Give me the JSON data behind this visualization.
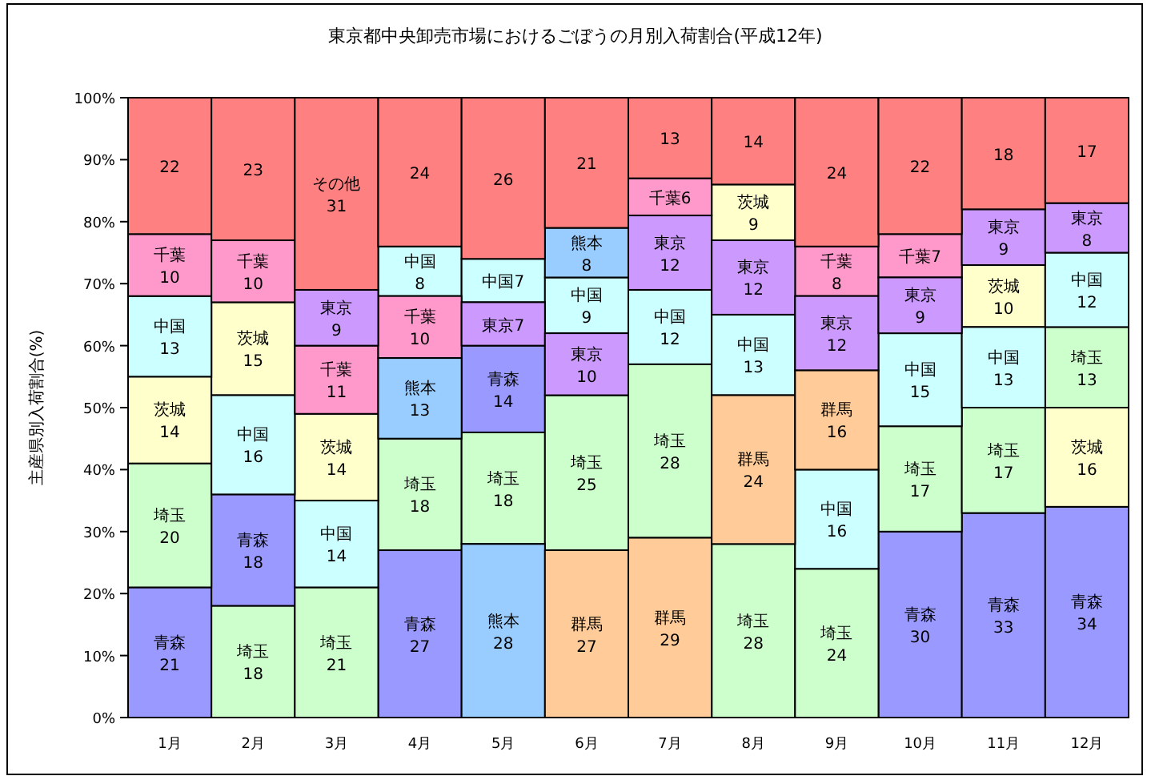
{
  "chart_data": {
    "type": "bar",
    "title": "東京都中央卸売市場におけるごぼうの月別入荷割合(平成12年)",
    "ylabel": "主産県別入荷割合(%)",
    "categories": [
      "1月",
      "2月",
      "3月",
      "4月",
      "5月",
      "6月",
      "7月",
      "8月",
      "9月",
      "10月",
      "11月",
      "12月"
    ],
    "ylim": [
      0,
      100
    ],
    "yticks": [
      {
        "value": 0,
        "label": "0%"
      },
      {
        "value": 10,
        "label": "10%"
      },
      {
        "value": 20,
        "label": "20%"
      },
      {
        "value": 30,
        "label": "30%"
      },
      {
        "value": 40,
        "label": "40%"
      },
      {
        "value": 50,
        "label": "50%"
      },
      {
        "value": 60,
        "label": "60%"
      },
      {
        "value": 70,
        "label": "70%"
      },
      {
        "value": 80,
        "label": "80%"
      },
      {
        "value": 90,
        "label": "90%"
      },
      {
        "value": 100,
        "label": "100%"
      }
    ],
    "series": [
      {
        "name": "青森",
        "color": "#9999ff",
        "values": [
          21,
          18,
          null,
          27,
          14,
          null,
          null,
          null,
          null,
          30,
          33,
          34
        ],
        "base": [
          0,
          18,
          null,
          0,
          46,
          null,
          null,
          null,
          null,
          0,
          0,
          0
        ],
        "value_labels": [
          "21",
          "18",
          null,
          "27",
          "14",
          null,
          null,
          null,
          null,
          "30",
          "33",
          "34"
        ]
      },
      {
        "name": "埼玉",
        "color": "#ccffcc",
        "values": [
          20,
          18,
          21,
          18,
          18,
          25,
          28,
          28,
          24,
          17,
          17,
          13
        ],
        "base": [
          21,
          0,
          0,
          27,
          28,
          27,
          29,
          0,
          0,
          30,
          33,
          50
        ],
        "value_labels": [
          "20",
          "18",
          "21",
          "18",
          "18",
          "25",
          "28",
          "28",
          "24",
          "17",
          "17",
          "13"
        ]
      },
      {
        "name": "茨城",
        "color": "#ffffcc",
        "values": [
          14,
          15,
          14,
          null,
          null,
          null,
          null,
          9,
          null,
          null,
          10,
          16
        ],
        "base": [
          41,
          52,
          35,
          null,
          null,
          null,
          null,
          77,
          null,
          null,
          63,
          34
        ],
        "value_labels": [
          "14",
          "15",
          "14",
          null,
          null,
          null,
          null,
          "9",
          null,
          null,
          "10",
          "16"
        ]
      },
      {
        "name": "中国",
        "color": "#ccffff",
        "values": [
          13,
          16,
          14,
          8,
          7,
          9,
          12,
          13,
          16,
          15,
          13,
          12
        ],
        "base": [
          55,
          36,
          21,
          68,
          67,
          62,
          57,
          52,
          24,
          47,
          50,
          63
        ],
        "value_labels": [
          "13",
          "16",
          "14",
          "8",
          "7",
          "9",
          "12",
          "13",
          "16",
          "15",
          "13",
          "12"
        ]
      },
      {
        "name": "千葉",
        "color": "#ff99cc",
        "values": [
          10,
          10,
          11,
          10,
          null,
          null,
          6,
          null,
          8,
          7,
          null,
          null
        ],
        "base": [
          68,
          67,
          49,
          58,
          null,
          null,
          81,
          null,
          68,
          71,
          null,
          null
        ],
        "value_labels": [
          "10",
          "10",
          "11",
          "10",
          null,
          null,
          "6",
          null,
          "8",
          "7",
          null,
          null
        ]
      },
      {
        "name": "東京",
        "color": "#cc99ff",
        "values": [
          null,
          null,
          9,
          null,
          7,
          10,
          12,
          12,
          12,
          9,
          9,
          8
        ],
        "base": [
          null,
          null,
          60,
          null,
          60,
          52,
          69,
          65,
          56,
          62,
          73,
          75
        ],
        "value_labels": [
          null,
          null,
          "9",
          null,
          "7",
          "10",
          "12",
          "12",
          "12",
          "9",
          "9",
          "8"
        ]
      },
      {
        "name": "熊本",
        "color": "#99ccff",
        "values": [
          null,
          null,
          null,
          13,
          28,
          8,
          null,
          null,
          null,
          null,
          null,
          null
        ],
        "base": [
          null,
          null,
          null,
          45,
          0,
          71,
          null,
          null,
          null,
          null,
          null,
          null
        ],
        "value_labels": [
          null,
          null,
          null,
          "13",
          "28",
          "8",
          null,
          null,
          null,
          null,
          null,
          null
        ]
      },
      {
        "name": "群馬",
        "color": "#ffcc99",
        "values": [
          null,
          null,
          null,
          null,
          null,
          27,
          29,
          24,
          16,
          null,
          null,
          null
        ],
        "base": [
          null,
          null,
          null,
          null,
          null,
          0,
          0,
          28,
          40,
          null,
          null,
          null
        ],
        "value_labels": [
          null,
          null,
          null,
          null,
          null,
          "27",
          "29",
          "24",
          "16",
          null,
          null,
          null
        ]
      },
      {
        "color": "#ff8080",
        "values": [
          22,
          23,
          31,
          24,
          26,
          21,
          13,
          14,
          24,
          22,
          18,
          17
        ],
        "base": [
          78,
          77,
          69,
          76,
          74,
          79,
          87,
          86,
          76,
          78,
          82,
          83
        ],
        "value_labels": [
          "22",
          "23",
          "その他 31",
          "24",
          "26",
          "21",
          "13",
          "14",
          "24",
          "22",
          "18",
          "17"
        ]
      }
    ]
  }
}
